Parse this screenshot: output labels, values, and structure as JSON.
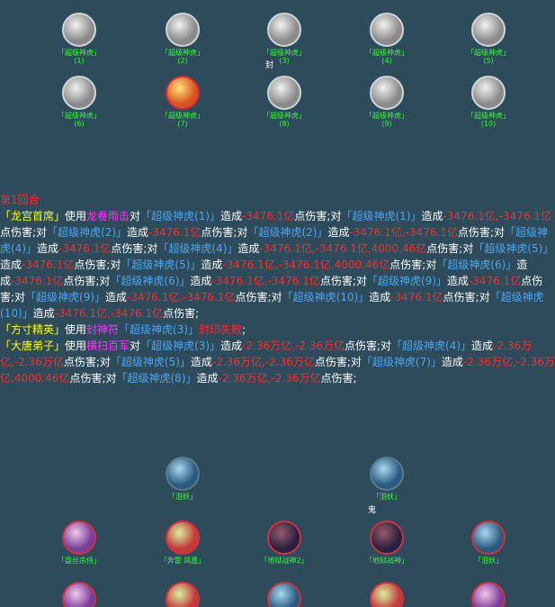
{
  "enemies": [
    {
      "name": "「超级神虎」",
      "index": "(1)"
    },
    {
      "name": "「超级神虎」",
      "index": "(2)"
    },
    {
      "name": "「超级神虎」",
      "index": "(3)"
    },
    {
      "name": "「超级神虎」",
      "index": "(4)"
    },
    {
      "name": "「超级神虎」",
      "index": "(5)"
    },
    {
      "name": "「超级神虎」",
      "index": "(6)"
    },
    {
      "name": "「超级神虎」",
      "index": "(7)"
    },
    {
      "name": "「超级神虎」",
      "index": "(8)"
    },
    {
      "name": "「超级神虎」",
      "index": "(9)"
    },
    {
      "name": "「超级神虎」",
      "index": "(10)"
    }
  ],
  "status_marks": [
    "封",
    "鬼"
  ],
  "log": {
    "round": "第1回合",
    "entries": [
      [
        {
          "t": "「龙宫首席」",
          "c": "actor"
        },
        {
          "t": "使用",
          "c": "plain"
        },
        {
          "t": "龙卷雨击",
          "c": "skill"
        },
        {
          "t": "对",
          "c": "plain"
        },
        {
          "t": "「超级神虎(1)」",
          "c": "target"
        },
        {
          "t": "造成",
          "c": "plain"
        },
        {
          "t": "-3476.1亿",
          "c": "dmg"
        },
        {
          "t": "点伤害;对",
          "c": "plain"
        },
        {
          "t": "「超级神虎(1)」",
          "c": "target"
        },
        {
          "t": "造成",
          "c": "plain"
        },
        {
          "t": "-3476.1亿,-3476.1亿",
          "c": "dmg"
        },
        {
          "t": "点伤害;对",
          "c": "plain"
        },
        {
          "t": "「超级神虎(2)」",
          "c": "target"
        },
        {
          "t": "造成",
          "c": "plain"
        },
        {
          "t": "-3476.1亿",
          "c": "dmg"
        },
        {
          "t": "点伤害;对",
          "c": "plain"
        },
        {
          "t": "「超级神虎(2)」",
          "c": "target"
        },
        {
          "t": "造成",
          "c": "plain"
        },
        {
          "t": "-3476.1亿,-3476.1亿",
          "c": "dmg"
        },
        {
          "t": "点伤害;对",
          "c": "plain"
        },
        {
          "t": "「超级神虎(4)」",
          "c": "target"
        },
        {
          "t": "造成",
          "c": "plain"
        },
        {
          "t": "-3476.1亿",
          "c": "dmg"
        },
        {
          "t": "点伤害;对",
          "c": "plain"
        },
        {
          "t": "「超级神虎(4)」",
          "c": "target"
        },
        {
          "t": "造成",
          "c": "plain"
        },
        {
          "t": "-3476.1亿,-3476.1亿,4000.46亿",
          "c": "dmg"
        },
        {
          "t": "点伤害;对",
          "c": "plain"
        },
        {
          "t": "「超级神虎(5)」",
          "c": "target"
        },
        {
          "t": "造成",
          "c": "plain"
        },
        {
          "t": "-3476.1亿",
          "c": "dmg"
        },
        {
          "t": "点伤害;对",
          "c": "plain"
        },
        {
          "t": "「超级神虎(5)」",
          "c": "target"
        },
        {
          "t": "造成",
          "c": "plain"
        },
        {
          "t": "-3476.1亿,-3476.1亿,4000.46亿",
          "c": "dmg"
        },
        {
          "t": "点伤害;对",
          "c": "plain"
        },
        {
          "t": "「超级神虎(6)」",
          "c": "target"
        },
        {
          "t": "造成",
          "c": "plain"
        },
        {
          "t": "-3476.1亿",
          "c": "dmg"
        },
        {
          "t": "点伤害;对",
          "c": "plain"
        },
        {
          "t": "「超级神虎(6)」",
          "c": "target"
        },
        {
          "t": "造成",
          "c": "plain"
        },
        {
          "t": "-3476.1亿,-3476.1亿",
          "c": "dmg"
        },
        {
          "t": "点伤害;对",
          "c": "plain"
        },
        {
          "t": "「超级神虎(9)」",
          "c": "target"
        },
        {
          "t": "造成",
          "c": "plain"
        },
        {
          "t": "-3476.1亿",
          "c": "dmg"
        },
        {
          "t": "点伤害;对",
          "c": "plain"
        },
        {
          "t": "「超级神虎(9)」",
          "c": "target"
        },
        {
          "t": "造成",
          "c": "plain"
        },
        {
          "t": "-3476.1亿,-3476.1亿",
          "c": "dmg"
        },
        {
          "t": "点伤害;对",
          "c": "plain"
        },
        {
          "t": "「超级神虎(10)」",
          "c": "target"
        },
        {
          "t": "造成",
          "c": "plain"
        },
        {
          "t": "-3476.1亿",
          "c": "dmg"
        },
        {
          "t": "点伤害;对",
          "c": "plain"
        },
        {
          "t": "「超级神虎(10)」",
          "c": "target"
        },
        {
          "t": "造成",
          "c": "plain"
        },
        {
          "t": "-3476.1亿,-3476.1亿",
          "c": "dmg"
        },
        {
          "t": "点伤害;",
          "c": "plain"
        }
      ],
      [
        {
          "t": "「方寸精英」",
          "c": "actor"
        },
        {
          "t": "使用",
          "c": "plain"
        },
        {
          "t": "封神符",
          "c": "skill"
        },
        {
          "t": "「超级神虎(3)」",
          "c": "target"
        },
        {
          "t": "封印失败",
          "c": "dmg"
        },
        {
          "t": ";",
          "c": "plain"
        }
      ],
      [
        {
          "t": "「大唐弟子」",
          "c": "actor"
        },
        {
          "t": "使用",
          "c": "plain"
        },
        {
          "t": "横扫百军",
          "c": "skill"
        },
        {
          "t": "对",
          "c": "plain"
        },
        {
          "t": "「超级神虎(3)」",
          "c": "target"
        },
        {
          "t": "造成",
          "c": "plain"
        },
        {
          "t": "-2.36万亿,-2.36万亿",
          "c": "dmg"
        },
        {
          "t": "点伤害;对",
          "c": "plain"
        },
        {
          "t": "「超级神虎(4)」",
          "c": "target"
        },
        {
          "t": "造成",
          "c": "plain"
        },
        {
          "t": "-2.36万亿,-2.36万亿",
          "c": "dmg"
        },
        {
          "t": "点伤害;对",
          "c": "plain"
        },
        {
          "t": "「超级神虎(5)」",
          "c": "target"
        },
        {
          "t": "造成",
          "c": "plain"
        },
        {
          "t": "-2.36万亿,-2.36万亿",
          "c": "dmg"
        },
        {
          "t": "点伤害;对",
          "c": "plain"
        },
        {
          "t": "「超级神虎(7)」",
          "c": "target"
        },
        {
          "t": "造成",
          "c": "plain"
        },
        {
          "t": "-2.36万亿,-2.36万亿,4000.46亿",
          "c": "dmg"
        },
        {
          "t": "点伤害;对",
          "c": "plain"
        },
        {
          "t": "「超级神虎(8)」",
          "c": "target"
        },
        {
          "t": "造成",
          "c": "plain"
        },
        {
          "t": "-2.36万亿,-2.36万亿",
          "c": "dmg"
        },
        {
          "t": "点伤害;",
          "c": "plain"
        }
      ]
    ]
  },
  "allies": [
    {
      "name": "「泪妖」"
    },
    {
      "name": "「泪妖」"
    },
    {
      "name": "「盘丝杀侍」"
    },
    {
      "name": "「奔雷·凤凰」"
    },
    {
      "name": "「地狱战神2」"
    },
    {
      "name": "「地狱战神」"
    },
    {
      "name": "「泪妖」"
    }
  ]
}
